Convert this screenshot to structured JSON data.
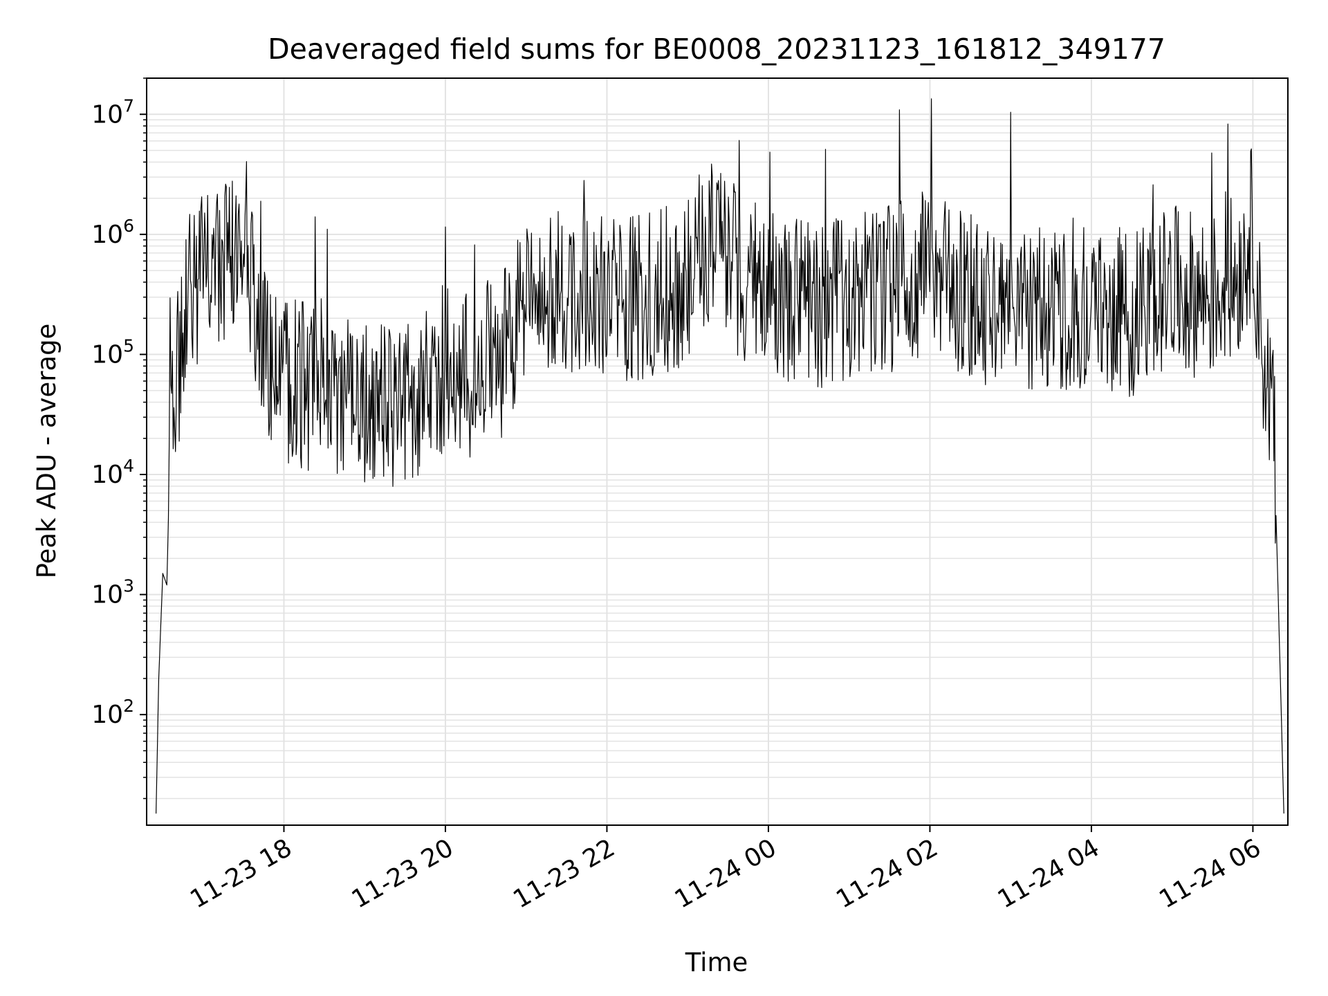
{
  "chart_data": {
    "type": "line",
    "title": "Deaveraged field sums for BE0008_20231123_161812_349177",
    "xlabel": "Time",
    "ylabel": "Peak ADU - average",
    "yscale": "log",
    "ylim": [
      12,
      20000000
    ],
    "xlim": [
      "2023-11-23 16:18",
      "2023-11-24 06:26"
    ],
    "grid": true,
    "line_color": "#000000",
    "grid_color": "#e3e3e3",
    "x_ticks": [
      {
        "value": "2023-11-23 18:00",
        "label": "11-23 18"
      },
      {
        "value": "2023-11-23 20:00",
        "label": "11-23 20"
      },
      {
        "value": "2023-11-23 22:00",
        "label": "11-23 22"
      },
      {
        "value": "2023-11-24 00:00",
        "label": "11-24 00"
      },
      {
        "value": "2023-11-24 02:00",
        "label": "11-24 02"
      },
      {
        "value": "2023-11-24 04:00",
        "label": "11-24 04"
      },
      {
        "value": "2023-11-24 06:00",
        "label": "11-24 06"
      }
    ],
    "y_ticks": [
      {
        "value": 100,
        "base": "10",
        "exp": "2"
      },
      {
        "value": 1000,
        "base": "10",
        "exp": "3"
      },
      {
        "value": 10000,
        "base": "10",
        "exp": "4"
      },
      {
        "value": 100000,
        "base": "10",
        "exp": "5"
      },
      {
        "value": 1000000,
        "base": "10",
        "exp": "6"
      },
      {
        "value": 10000000,
        "base": "10",
        "exp": "7"
      }
    ],
    "series": [
      {
        "x": [
          "2023-11-23 16:25",
          "2023-11-23 16:27",
          "2023-11-23 16:30",
          "2023-11-23 16:33",
          "2023-11-23 16:36",
          "2023-11-23 16:40",
          "2023-11-23 16:45",
          "2023-11-23 16:50",
          "2023-11-23 16:55",
          "2023-11-23 17:00",
          "2023-11-23 17:10",
          "2023-11-23 17:20",
          "2023-11-23 17:30",
          "2023-11-23 17:35",
          "2023-11-23 17:40",
          "2023-11-23 17:50",
          "2023-11-23 18:00",
          "2023-11-23 18:30",
          "2023-11-23 19:00",
          "2023-11-23 19:30",
          "2023-11-23 20:00",
          "2023-11-23 20:20",
          "2023-11-23 20:40",
          "2023-11-23 21:00",
          "2023-11-23 21:30",
          "2023-11-23 22:00",
          "2023-11-23 22:30",
          "2023-11-23 23:00",
          "2023-11-23 23:20",
          "2023-11-23 23:40",
          "2023-11-24 00:00",
          "2023-11-24 00:30",
          "2023-11-24 01:00",
          "2023-11-24 01:30",
          "2023-11-24 02:00",
          "2023-11-24 02:30",
          "2023-11-24 03:00",
          "2023-11-24 03:30",
          "2023-11-24 04:00",
          "2023-11-24 04:30",
          "2023-11-24 05:00",
          "2023-11-24 05:30",
          "2023-11-24 05:50",
          "2023-11-24 06:00",
          "2023-11-24 06:05",
          "2023-11-24 06:10",
          "2023-11-24 06:15",
          "2023-11-24 06:20",
          "2023-11-24 06:23"
        ],
        "y": [
          15,
          200,
          1500,
          1200,
          30000,
          60000,
          150000,
          300000,
          400000,
          500000,
          450000,
          600000,
          1500000,
          400000,
          150000,
          80000,
          60000,
          50000,
          40000,
          35000,
          80000,
          60000,
          90000,
          250000,
          350000,
          300000,
          300000,
          400000,
          1200000,
          400000,
          350000,
          250000,
          300000,
          350000,
          500000,
          300000,
          200000,
          250000,
          250000,
          220000,
          350000,
          300000,
          500000,
          1200000,
          200000,
          60000,
          40000,
          300,
          15
        ]
      }
    ]
  }
}
